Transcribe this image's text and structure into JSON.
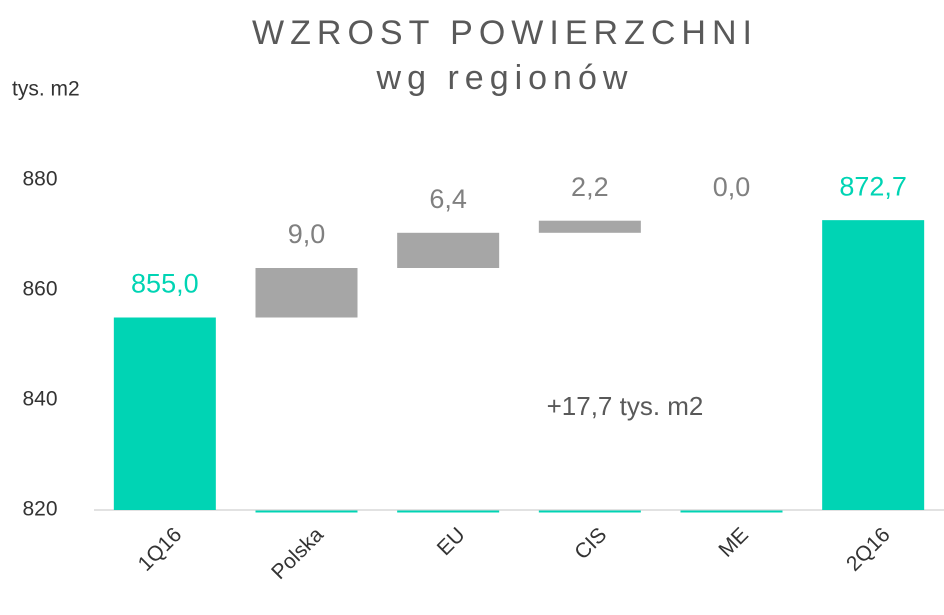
{
  "chart_data": {
    "type": "waterfall",
    "title": "WZROST POWIERZCHNI",
    "subtitle": "wg regionów",
    "y_label": "tys. m2",
    "annotation": "+17,7 tys. m2",
    "categories": [
      "1Q16",
      "Polska",
      "EU",
      "CIS",
      "ME",
      "2Q16"
    ],
    "values": [
      855.0,
      9.0,
      6.4,
      2.2,
      0.0,
      872.7
    ],
    "value_labels": [
      "855,0",
      "9,0",
      "6,4",
      "2,2",
      "0,0",
      "872,7"
    ],
    "colors": [
      "#00d4b4",
      "#a6a6a6",
      "#a6a6a6",
      "#a6a6a6",
      "#a6a6a6",
      "#00d4b4"
    ],
    "label_colors": [
      "#00d4b4",
      "#808080",
      "#808080",
      "#808080",
      "#808080",
      "#00d4b4"
    ],
    "ylim": [
      820,
      880
    ],
    "yticks": [
      820,
      840,
      860,
      880
    ],
    "grid": false
  }
}
